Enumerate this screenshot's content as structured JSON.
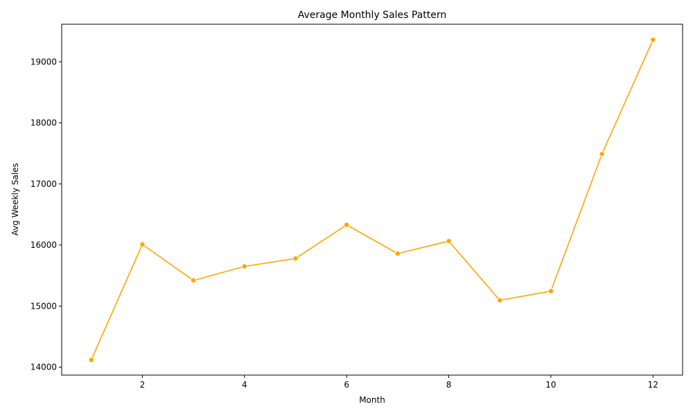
{
  "chart_data": {
    "type": "line",
    "title": "Average Monthly Sales Pattern",
    "xlabel": "Month",
    "ylabel": "Avg Weekly Sales",
    "x": [
      1,
      2,
      3,
      4,
      5,
      6,
      7,
      8,
      9,
      10,
      11,
      12
    ],
    "series": [
      {
        "values": [
          14120,
          16010,
          15420,
          15650,
          15780,
          16330,
          15860,
          16065,
          15095,
          15245,
          17490,
          19360
        ],
        "color": "#ffa500"
      }
    ],
    "xlim": [
      0.42,
      12.58
    ],
    "ylim": [
      13870,
      19615
    ],
    "xticks": [
      2,
      4,
      6,
      8,
      10,
      12
    ],
    "yticks": [
      14000,
      15000,
      16000,
      17000,
      18000,
      19000
    ],
    "grid": false,
    "legend": "none",
    "marker": "circle"
  }
}
